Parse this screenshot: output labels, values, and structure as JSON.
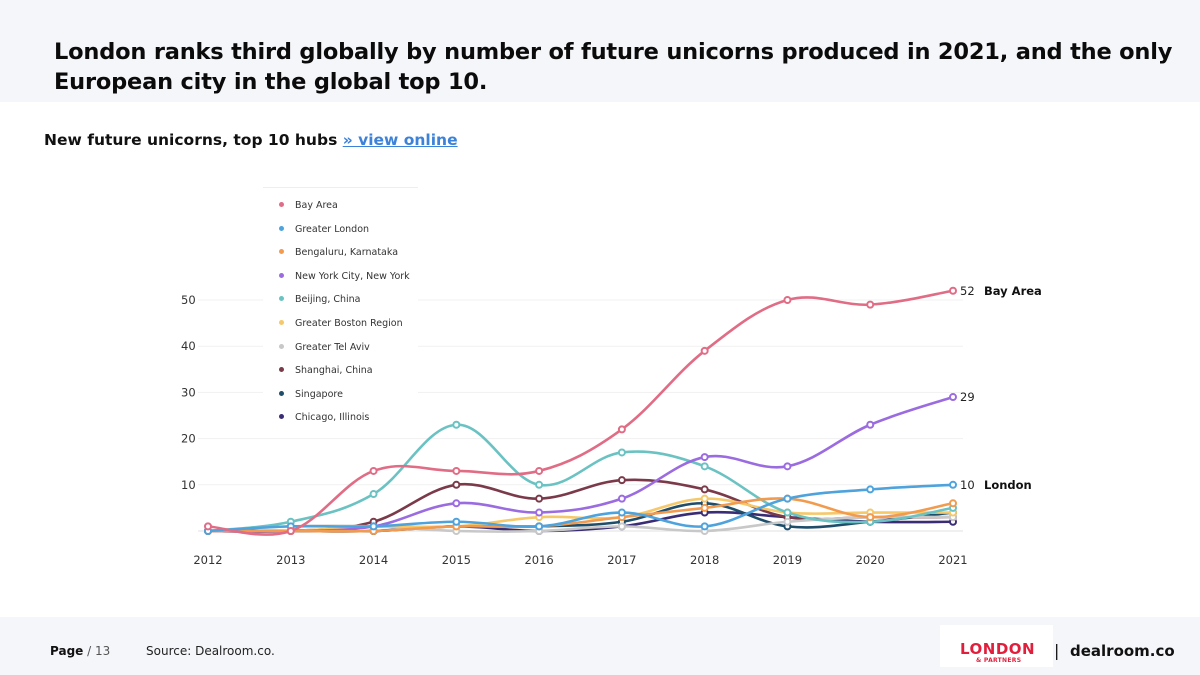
{
  "headline": "London ranks third globally by number of future unicorns produced in 2021, and the only European city in the global top 10.",
  "subtitle": {
    "text": "New future unicorns, top 10 hubs ",
    "link": "» view online"
  },
  "chart_data": {
    "type": "line",
    "x": [
      2012,
      2013,
      2014,
      2015,
      2016,
      2017,
      2018,
      2019,
      2020,
      2021
    ],
    "x_tick_labels": [
      "2012",
      "2013",
      "2014",
      "2015",
      "2016",
      "2017",
      "2018",
      "2019",
      "2020",
      "2021"
    ],
    "y_tick_labels": [
      "10",
      "20",
      "30",
      "40",
      "50"
    ],
    "ylim": [
      0,
      57
    ],
    "grid": true,
    "legend_position": "top-left",
    "series": [
      {
        "name": "Bay Area",
        "color": "#e06c85",
        "values": [
          1,
          0,
          13,
          13,
          13,
          22,
          39,
          50,
          49,
          52
        ]
      },
      {
        "name": "Greater London",
        "color": "#4ea3dd",
        "values": [
          0,
          1,
          1,
          2,
          1,
          4,
          1,
          7,
          9,
          10
        ]
      },
      {
        "name": "Bengaluru, Karnataka",
        "color": "#f29b4f",
        "values": [
          0,
          0,
          0,
          1,
          1,
          3,
          5,
          7,
          3,
          6
        ]
      },
      {
        "name": "New York City, New York",
        "color": "#9b6be0",
        "values": [
          0,
          0,
          1,
          6,
          4,
          7,
          16,
          14,
          23,
          29
        ]
      },
      {
        "name": "Beijing, China",
        "color": "#6bc2c2",
        "values": [
          0,
          2,
          8,
          23,
          10,
          17,
          14,
          4,
          2,
          5
        ]
      },
      {
        "name": "Greater Boston Region",
        "color": "#f5c86a",
        "values": [
          0,
          0,
          1,
          1,
          3,
          3,
          7,
          4,
          4,
          4
        ]
      },
      {
        "name": "Greater Tel Aviv",
        "color": "#c8c8c8",
        "values": [
          0,
          1,
          1,
          0,
          0,
          1,
          0,
          2,
          3,
          3
        ]
      },
      {
        "name": "Shanghai, China",
        "color": "#7a3a4a",
        "values": [
          0,
          0,
          2,
          10,
          7,
          11,
          9,
          3,
          3,
          3
        ]
      },
      {
        "name": "Singapore",
        "color": "#1f4e6b",
        "values": [
          0,
          0,
          0,
          1,
          1,
          2,
          6,
          1,
          2,
          4
        ]
      },
      {
        "name": "Chicago, Illinois",
        "color": "#3b2d75",
        "values": [
          0,
          0,
          0,
          1,
          0,
          1,
          4,
          3,
          2,
          2
        ]
      }
    ],
    "end_labels": [
      {
        "series": 0,
        "value": "52",
        "label": "Bay Area"
      },
      {
        "series": 3,
        "value": "29",
        "label": ""
      },
      {
        "series": 1,
        "value": "10",
        "label": "London"
      }
    ]
  },
  "footer": {
    "page_label": "Page",
    "page_total": " / 13",
    "source": "Source: Dealroom.co.",
    "logo_main": "LONDON",
    "logo_sub": "& PARTNERS",
    "separator": "|",
    "brand": "dealroom.co"
  }
}
